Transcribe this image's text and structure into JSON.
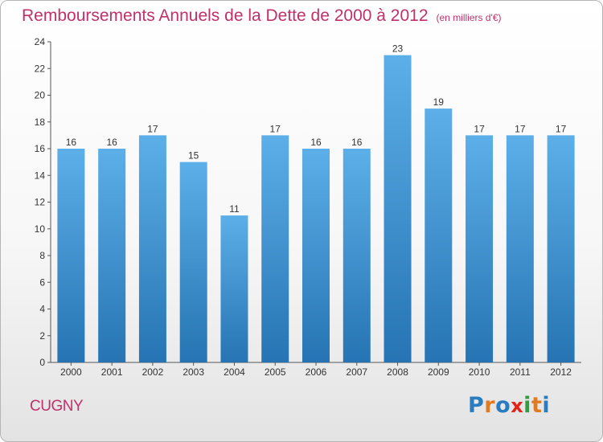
{
  "header": {
    "title": "Remboursements Annuels de la Dette de 2000 à 2012",
    "subtitle": "(en milliers d'€)"
  },
  "footer": {
    "city": "CUGNY",
    "logo": "Proxiti",
    "logo_colors": [
      "#2a7cc0",
      "#e07b22",
      "#2a7cc0",
      "#e2231a",
      "#2e9e3e",
      "#e07b22",
      "#2a7cc0"
    ]
  },
  "colors": {
    "accent": "#c0306a",
    "bar_top": "#5cafe8",
    "bar_bottom": "#2674b3",
    "axis": "#555555",
    "grid": "#cccccc"
  },
  "chart_data": {
    "type": "bar",
    "categories": [
      "2000",
      "2001",
      "2002",
      "2003",
      "2004",
      "2005",
      "2006",
      "2007",
      "2008",
      "2009",
      "2010",
      "2011",
      "2012"
    ],
    "values": [
      16,
      16,
      17,
      15,
      11,
      17,
      16,
      16,
      23,
      19,
      17,
      17,
      17
    ],
    "title": "Remboursements Annuels de la Dette de 2000 à 2012",
    "subtitle": "(en milliers d'€)",
    "xlabel": "",
    "ylabel": "",
    "ylim": [
      0,
      24
    ],
    "yticks": [
      0,
      2,
      4,
      6,
      8,
      10,
      12,
      14,
      16,
      18,
      20,
      22,
      24
    ],
    "data_labels": true,
    "grid": false,
    "legend": "none"
  }
}
